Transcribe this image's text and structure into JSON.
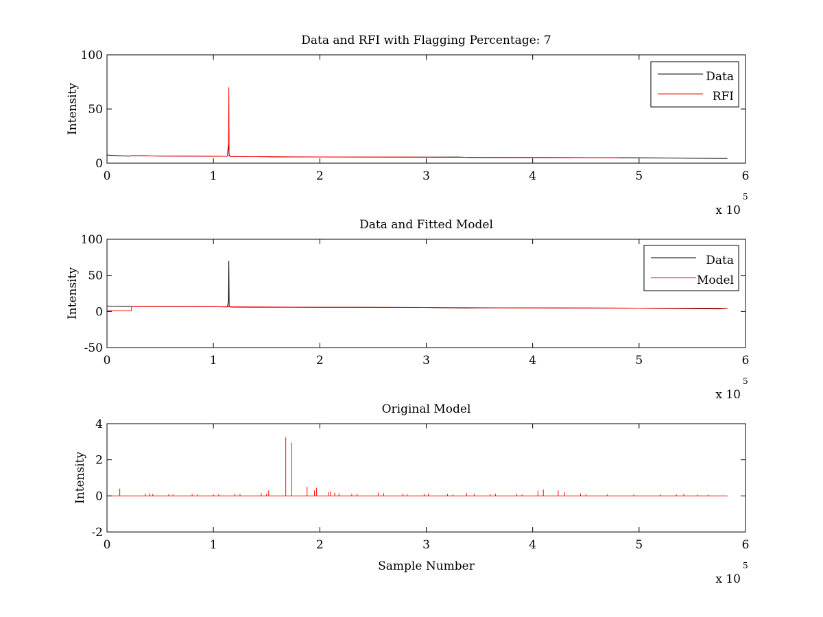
{
  "colors": {
    "data": "#000000",
    "rfi": "#ff0000",
    "model": "#ff0000",
    "axis": "#000000",
    "background": "#ffffff"
  },
  "chart_data": [
    {
      "id": "panel1",
      "type": "line",
      "title": "Data and RFI with Flagging Percentage: 7",
      "xlabel": "",
      "ylabel": "Intensity",
      "xlim": [
        0,
        6
      ],
      "ylim": [
        0,
        100
      ],
      "xticks": [
        0,
        1,
        2,
        3,
        4,
        5,
        6
      ],
      "yticks": [
        0,
        50,
        100
      ],
      "x_multiplier": {
        "base": "x 10",
        "exponent": "5"
      },
      "grid": false,
      "legend_position": "top-right",
      "legend": [
        "Data",
        "RFI"
      ],
      "series": [
        {
          "name": "Data",
          "color": "#000000",
          "x": [
            0,
            0.05,
            0.2,
            0.25,
            0.5,
            1.0,
            1.13,
            1.142,
            1.145,
            1.148,
            1.16,
            1.4,
            1.6,
            2.0,
            3.0,
            3.3,
            3.4,
            4.0,
            5.0,
            5.4,
            5.5,
            5.83
          ],
          "y": [
            7.5,
            7.2,
            6.5,
            7.0,
            6.6,
            6.4,
            6.3,
            14,
            18,
            7,
            6.1,
            6.0,
            5.8,
            5.7,
            5.5,
            5.6,
            5.2,
            5.2,
            5.0,
            4.7,
            4.5,
            4.3
          ]
        },
        {
          "name": "RFI",
          "color": "#ff0000",
          "x": [
            0.25,
            0.3,
            0.45,
            1.13,
            1.142,
            1.145,
            1.148,
            1.16,
            1.4,
            1.6,
            1.75,
            2.7,
            4.1,
            4.8
          ],
          "y": [
            6.8,
            7.0,
            6.6,
            6.3,
            18,
            70,
            8,
            6.1,
            6.0,
            5.9,
            5.8,
            5.6,
            5.2,
            5.0
          ]
        }
      ]
    },
    {
      "id": "panel2",
      "type": "line",
      "title": "Data and Fitted Model",
      "xlabel": "",
      "ylabel": "Intensity",
      "xlim": [
        0,
        6
      ],
      "ylim": [
        -50,
        100
      ],
      "xticks": [
        0,
        1,
        2,
        3,
        4,
        5,
        6
      ],
      "yticks": [
        -50,
        0,
        50,
        100
      ],
      "x_multiplier": {
        "base": "x 10",
        "exponent": "5"
      },
      "grid": false,
      "legend_position": "top-right",
      "legend": [
        "Data",
        "Model"
      ],
      "series": [
        {
          "name": "Data",
          "color": "#000000",
          "x": [
            0,
            0.05,
            0.2,
            0.23,
            1.0,
            1.13,
            1.142,
            1.145,
            1.148,
            1.16,
            1.25,
            2.0,
            3.0,
            3.35,
            3.5,
            4.0,
            5.0,
            5.75,
            5.83
          ],
          "y": [
            7.5,
            7.2,
            7.0,
            6.8,
            6.6,
            6.3,
            14,
            70,
            8,
            6.1,
            6.0,
            5.8,
            5.5,
            4.8,
            5.0,
            4.9,
            4.6,
            3.5,
            4.2
          ]
        },
        {
          "name": "Model",
          "color": "#ff0000",
          "x": [
            0,
            0.23,
            0.23,
            1.0,
            2.0,
            3.0,
            4.0,
            5.0,
            5.83
          ],
          "y": [
            1.0,
            1.0,
            6.8,
            6.6,
            5.8,
            5.5,
            4.9,
            4.6,
            4.4
          ]
        }
      ]
    },
    {
      "id": "panel3",
      "type": "line",
      "title": "Original Model",
      "xlabel": "Sample Number",
      "ylabel": "Intensity",
      "xlim": [
        0,
        6
      ],
      "ylim": [
        -2,
        4
      ],
      "xticks": [
        0,
        1,
        2,
        3,
        4,
        5,
        6
      ],
      "yticks": [
        -2,
        0,
        2,
        4
      ],
      "x_multiplier": {
        "base": "x 10",
        "exponent": "5"
      },
      "grid": false,
      "legend_position": "none",
      "legend": [],
      "baseline": 0,
      "xmax_data": 5.83,
      "series": [
        {
          "name": "",
          "color": "#ff0000",
          "spikes_x": [
            0.12,
            0.36,
            0.4,
            0.43,
            0.58,
            0.62,
            0.8,
            0.85,
            1.0,
            1.05,
            1.2,
            1.25,
            1.45,
            1.5,
            1.52,
            1.68,
            1.735,
            1.88,
            1.95,
            1.97,
            2.08,
            2.1,
            2.14,
            2.18,
            2.3,
            2.35,
            2.55,
            2.6,
            2.78,
            2.82,
            2.98,
            3.02,
            3.2,
            3.25,
            3.38,
            3.45,
            3.6,
            3.65,
            3.85,
            3.9,
            4.05,
            4.1,
            4.24,
            4.3,
            4.45,
            4.5,
            4.7,
            4.95,
            5.2,
            5.35,
            5.42,
            5.55,
            5.65
          ],
          "spikes_y": [
            0.4,
            0.12,
            0.15,
            0.1,
            0.1,
            0.08,
            0.1,
            0.08,
            0.08,
            0.1,
            0.12,
            0.1,
            0.15,
            0.12,
            0.3,
            3.25,
            2.95,
            0.5,
            0.3,
            0.45,
            0.2,
            0.25,
            0.18,
            0.15,
            0.1,
            0.12,
            0.18,
            0.15,
            0.12,
            0.1,
            0.1,
            0.12,
            0.1,
            0.08,
            0.15,
            0.12,
            0.1,
            0.12,
            0.1,
            0.08,
            0.3,
            0.35,
            0.3,
            0.2,
            0.12,
            0.1,
            0.08,
            0.08,
            0.08,
            0.08,
            0.1,
            0.06,
            0.06
          ]
        }
      ]
    }
  ]
}
